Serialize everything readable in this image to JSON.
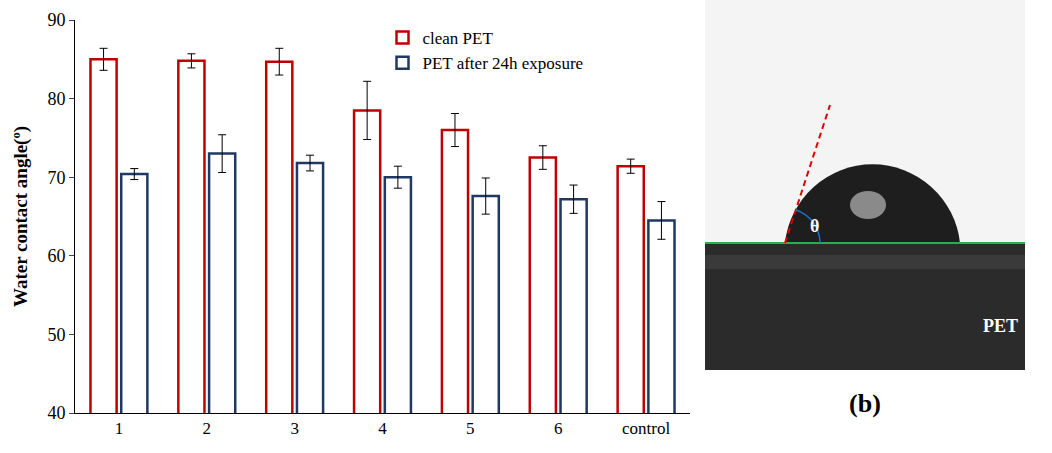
{
  "chart_data": {
    "type": "bar",
    "y_label": "Water contact angle(º)",
    "categories": [
      "1",
      "2",
      "3",
      "4",
      "5",
      "6",
      "control"
    ],
    "series": [
      {
        "name": "clean PET",
        "color": "#c00000",
        "values": [
          85.0,
          84.8,
          84.7,
          78.5,
          76.0,
          72.5,
          71.4
        ],
        "errors": [
          1.4,
          0.9,
          1.7,
          3.7,
          2.1,
          1.5,
          0.9
        ]
      },
      {
        "name": "PET after 24h exposure",
        "color": "#1f3864",
        "values": [
          70.4,
          73.0,
          71.8,
          70.0,
          67.6,
          67.2,
          64.5
        ],
        "errors": [
          0.7,
          2.4,
          1.0,
          1.4,
          2.3,
          1.8,
          2.4
        ]
      }
    ],
    "ylim": [
      40,
      90
    ],
    "yticks": [
      40,
      50,
      60,
      70,
      80,
      90
    ],
    "grid": false,
    "legend": "top-right"
  },
  "panel_b": {
    "label": "(b)",
    "angle_symbol": "θ",
    "substrate": "PET"
  }
}
